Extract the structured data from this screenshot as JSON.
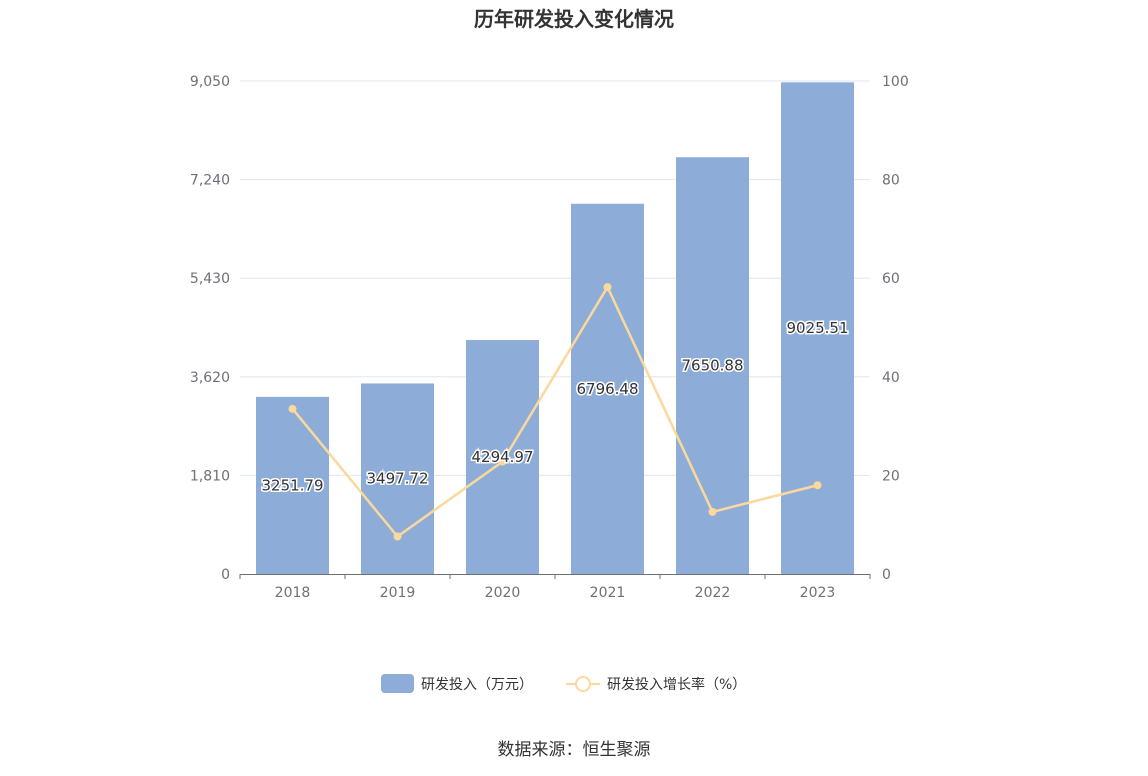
{
  "chart_data": {
    "type": "bar",
    "title": "历年研发投入变化情况",
    "categories": [
      "2018",
      "2019",
      "2020",
      "2021",
      "2022",
      "2023"
    ],
    "series": [
      {
        "name": "研发投入（万元）",
        "type": "bar",
        "axis": "left",
        "color": "#8eacd8",
        "values": [
          3251.79,
          3497.72,
          4294.97,
          6796.48,
          7650.88,
          9025.51
        ],
        "labels": [
          "3251.79",
          "3497.72",
          "4294.97",
          "6796.48",
          "7650.88",
          "9025.51"
        ]
      },
      {
        "name": "研发投入增长率（%）",
        "type": "line",
        "axis": "right",
        "color": "#fbd89c",
        "values": [
          33.5,
          7.6,
          22.8,
          58.2,
          12.6,
          18.0
        ]
      }
    ],
    "y_left": {
      "min": 0,
      "max": 9050,
      "ticks": [
        "0",
        "1,810",
        "3,620",
        "5,430",
        "7,240",
        "9,050"
      ]
    },
    "y_right": {
      "min": 0,
      "max": 100,
      "ticks": [
        "0",
        "20",
        "40",
        "60",
        "80",
        "100"
      ]
    },
    "grid": true,
    "legend_position": "bottom-center"
  },
  "source": "数据来源：恒生聚源"
}
